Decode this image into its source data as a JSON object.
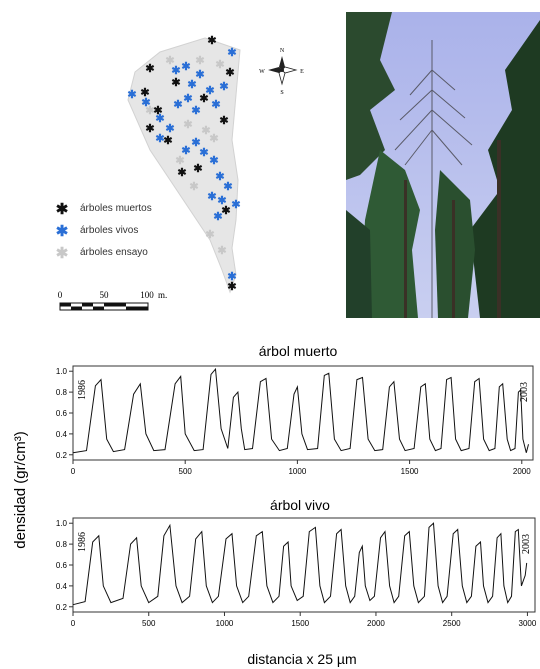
{
  "map": {
    "legend": [
      {
        "label": "árboles muertos",
        "color": "#111111"
      },
      {
        "label": "árboles vivos",
        "color": "#2a6fd6"
      },
      {
        "label": "árboles ensayo",
        "color": "#c8c8c8"
      }
    ],
    "scale": {
      "ticks": [
        "0",
        "50",
        "100"
      ],
      "unit": "m."
    },
    "compass": {
      "n": "N",
      "s": "S",
      "e": "E",
      "w": "W"
    }
  },
  "photo": {
    "sky_color": "#a9b3e6",
    "foliage_color": "#1e3a22"
  },
  "chart_data": [
    {
      "type": "line",
      "title": "árbol muerto",
      "ylabel": "densidad (gr/cm³)",
      "xlim": [
        0,
        2050
      ],
      "ylim": [
        0.15,
        1.05
      ],
      "x_ticks": [
        0,
        500,
        1000,
        1500,
        2000
      ],
      "y_ticks": [
        0.2,
        0.4,
        0.6,
        0.8,
        1.0
      ],
      "y_tick_labels": [
        "0.2",
        "0.4",
        "0.6",
        "0.8",
        "1.0"
      ],
      "annotations": [
        "1986",
        "2003"
      ],
      "series": [
        {
          "rings": [
            [
              0,
              0.22
            ],
            [
              60,
              0.24
            ],
            [
              100,
              0.86
            ],
            [
              125,
              0.92
            ],
            [
              150,
              0.35
            ],
            [
              180,
              0.23
            ],
            [
              230,
              0.25
            ],
            [
              270,
              0.78
            ],
            [
              300,
              0.88
            ],
            [
              325,
              0.4
            ],
            [
              360,
              0.24
            ],
            [
              410,
              0.25
            ],
            [
              455,
              0.88
            ],
            [
              480,
              0.95
            ],
            [
              500,
              0.4
            ],
            [
              540,
              0.24
            ],
            [
              580,
              0.25
            ],
            [
              615,
              0.97
            ],
            [
              635,
              1.02
            ],
            [
              660,
              0.45
            ],
            [
              690,
              0.26
            ],
            [
              715,
              0.75
            ],
            [
              735,
              0.8
            ],
            [
              750,
              0.45
            ],
            [
              765,
              0.25
            ],
            [
              800,
              0.26
            ],
            [
              835,
              0.9
            ],
            [
              860,
              0.93
            ],
            [
              885,
              0.35
            ],
            [
              920,
              0.24
            ],
            [
              955,
              0.26
            ],
            [
              985,
              0.78
            ],
            [
              1000,
              0.85
            ],
            [
              1020,
              0.4
            ],
            [
              1045,
              0.25
            ],
            [
              1090,
              0.26
            ],
            [
              1120,
              0.96
            ],
            [
              1140,
              0.98
            ],
            [
              1165,
              0.35
            ],
            [
              1195,
              0.24
            ],
            [
              1235,
              0.26
            ],
            [
              1265,
              0.92
            ],
            [
              1290,
              0.94
            ],
            [
              1315,
              0.35
            ],
            [
              1345,
              0.24
            ],
            [
              1380,
              0.25
            ],
            [
              1410,
              0.85
            ],
            [
              1430,
              0.9
            ],
            [
              1455,
              0.35
            ],
            [
              1480,
              0.24
            ],
            [
              1520,
              0.26
            ],
            [
              1550,
              0.85
            ],
            [
              1570,
              0.88
            ],
            [
              1590,
              0.35
            ],
            [
              1615,
              0.24
            ],
            [
              1640,
              0.26
            ],
            [
              1665,
              0.92
            ],
            [
              1685,
              0.94
            ],
            [
              1705,
              0.35
            ],
            [
              1730,
              0.24
            ],
            [
              1765,
              0.26
            ],
            [
              1790,
              0.9
            ],
            [
              1810,
              0.93
            ],
            [
              1830,
              0.35
            ],
            [
              1855,
              0.24
            ],
            [
              1880,
              0.26
            ],
            [
              1900,
              0.85
            ],
            [
              1915,
              0.88
            ],
            [
              1935,
              0.35
            ],
            [
              1950,
              0.24
            ],
            [
              1970,
              0.26
            ],
            [
              1985,
              0.8
            ],
            [
              1995,
              0.82
            ],
            [
              2005,
              0.35
            ],
            [
              2020,
              0.22
            ],
            [
              2030,
              0.3
            ]
          ]
        }
      ]
    },
    {
      "type": "line",
      "title": "árbol vivo",
      "xlabel": "distancia x 25 µm",
      "ylabel": "densidad (gr/cm³)",
      "xlim": [
        0,
        3050
      ],
      "ylim": [
        0.15,
        1.05
      ],
      "x_ticks": [
        0,
        500,
        1000,
        1500,
        2000,
        2500,
        3000
      ],
      "y_ticks": [
        0.2,
        0.4,
        0.6,
        0.8,
        1.0
      ],
      "y_tick_labels": [
        "0.2",
        "0.4",
        "0.6",
        "0.8",
        "1.0"
      ],
      "annotations": [
        "1986",
        "2003"
      ],
      "series": [
        {
          "rings": [
            [
              0,
              0.22
            ],
            [
              80,
              0.25
            ],
            [
              130,
              0.82
            ],
            [
              170,
              0.88
            ],
            [
              200,
              0.4
            ],
            [
              250,
              0.24
            ],
            [
              330,
              0.28
            ],
            [
              380,
              0.8
            ],
            [
              420,
              0.86
            ],
            [
              450,
              0.4
            ],
            [
              500,
              0.24
            ],
            [
              560,
              0.3
            ],
            [
              600,
              0.88
            ],
            [
              640,
              0.98
            ],
            [
              680,
              0.4
            ],
            [
              720,
              0.24
            ],
            [
              770,
              0.3
            ],
            [
              810,
              0.85
            ],
            [
              850,
              0.92
            ],
            [
              880,
              0.4
            ],
            [
              920,
              0.24
            ],
            [
              960,
              0.3
            ],
            [
              1010,
              0.85
            ],
            [
              1050,
              0.9
            ],
            [
              1080,
              0.4
            ],
            [
              1120,
              0.24
            ],
            [
              1160,
              0.3
            ],
            [
              1210,
              0.88
            ],
            [
              1250,
              0.92
            ],
            [
              1280,
              0.4
            ],
            [
              1320,
              0.24
            ],
            [
              1360,
              0.3
            ],
            [
              1390,
              0.78
            ],
            [
              1420,
              0.82
            ],
            [
              1440,
              0.4
            ],
            [
              1480,
              0.26
            ],
            [
              1520,
              0.3
            ],
            [
              1560,
              0.92
            ],
            [
              1600,
              0.96
            ],
            [
              1630,
              0.4
            ],
            [
              1660,
              0.24
            ],
            [
              1700,
              0.3
            ],
            [
              1740,
              0.9
            ],
            [
              1770,
              0.94
            ],
            [
              1800,
              0.4
            ],
            [
              1830,
              0.24
            ],
            [
              1860,
              0.3
            ],
            [
              1890,
              0.72
            ],
            [
              1910,
              0.78
            ],
            [
              1930,
              0.4
            ],
            [
              1960,
              0.26
            ],
            [
              1990,
              0.3
            ],
            [
              2030,
              0.86
            ],
            [
              2060,
              0.92
            ],
            [
              2090,
              0.4
            ],
            [
              2120,
              0.24
            ],
            [
              2150,
              0.3
            ],
            [
              2190,
              0.88
            ],
            [
              2220,
              0.92
            ],
            [
              2250,
              0.4
            ],
            [
              2280,
              0.24
            ],
            [
              2320,
              0.3
            ],
            [
              2350,
              0.96
            ],
            [
              2380,
              1.0
            ],
            [
              2410,
              0.4
            ],
            [
              2440,
              0.24
            ],
            [
              2470,
              0.3
            ],
            [
              2510,
              0.9
            ],
            [
              2540,
              0.94
            ],
            [
              2570,
              0.4
            ],
            [
              2600,
              0.24
            ],
            [
              2630,
              0.3
            ],
            [
              2660,
              0.78
            ],
            [
              2690,
              0.82
            ],
            [
              2710,
              0.4
            ],
            [
              2740,
              0.24
            ],
            [
              2770,
              0.3
            ],
            [
              2800,
              0.86
            ],
            [
              2825,
              0.9
            ],
            [
              2845,
              0.4
            ],
            [
              2870,
              0.24
            ],
            [
              2895,
              0.3
            ],
            [
              2920,
              0.92
            ],
            [
              2940,
              0.94
            ],
            [
              2960,
              0.4
            ],
            [
              2985,
              0.5
            ],
            [
              2995,
              0.62
            ]
          ]
        }
      ]
    }
  ]
}
